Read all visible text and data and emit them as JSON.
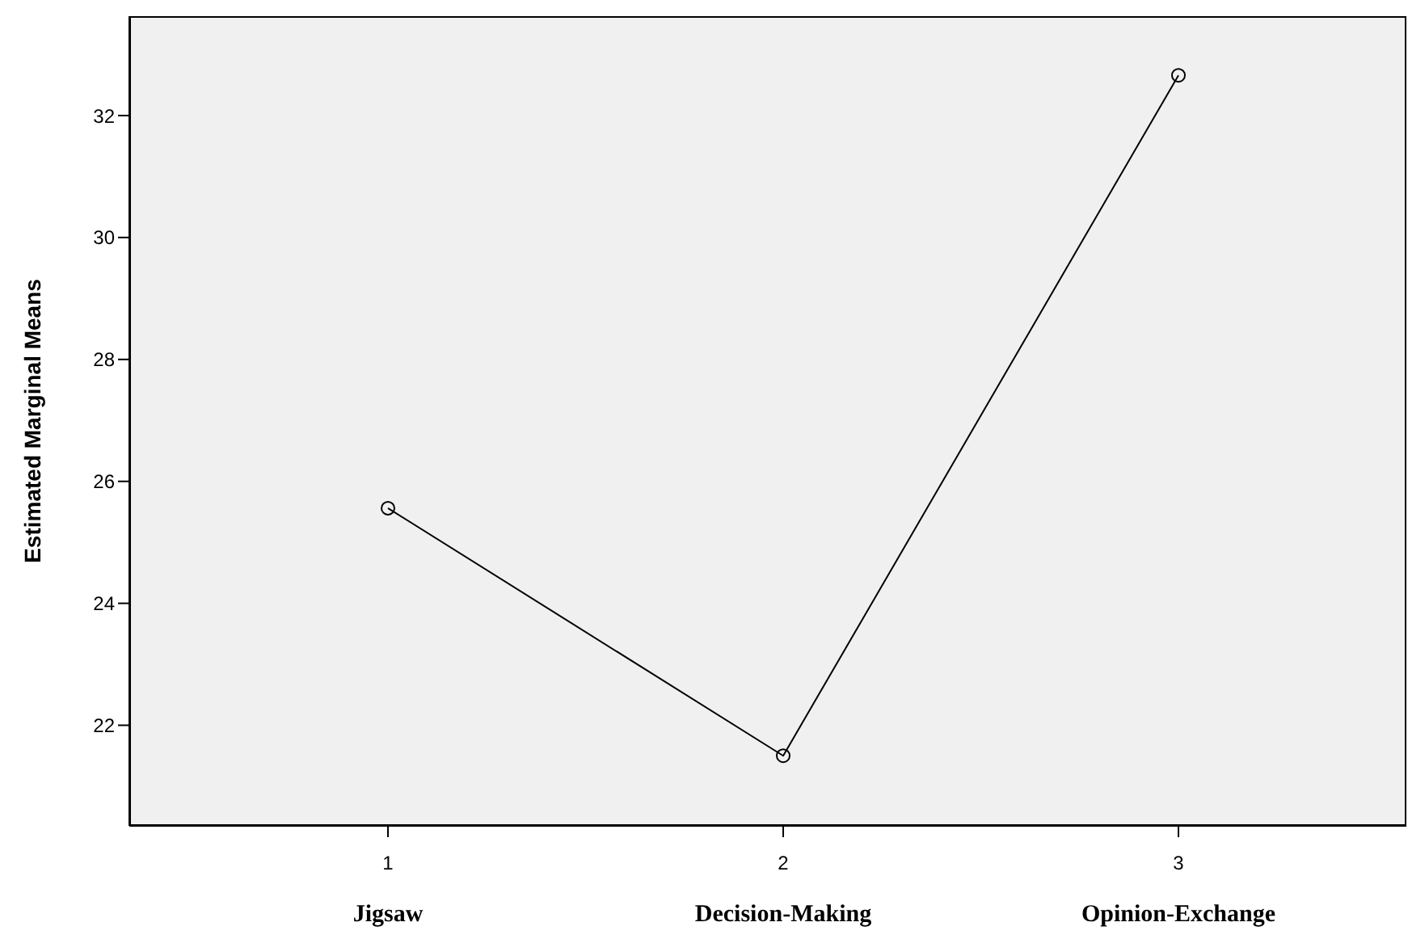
{
  "chart_data": {
    "type": "line",
    "ylabel": "Estimated Marginal Means",
    "categories": [
      "1",
      "2",
      "3"
    ],
    "series": [
      {
        "color": "#000000",
        "values": [
          25.56,
          21.5,
          32.66
        ]
      }
    ],
    "ylim": [
      20.35,
      33.63
    ],
    "yticks": [
      22,
      24,
      26,
      28,
      30,
      32
    ],
    "grid": false,
    "legend": false,
    "marker": "circle",
    "line_style": "solid",
    "annotations": [
      "Jigsaw",
      "Decision-Making",
      "Opinion-Exchange"
    ]
  }
}
